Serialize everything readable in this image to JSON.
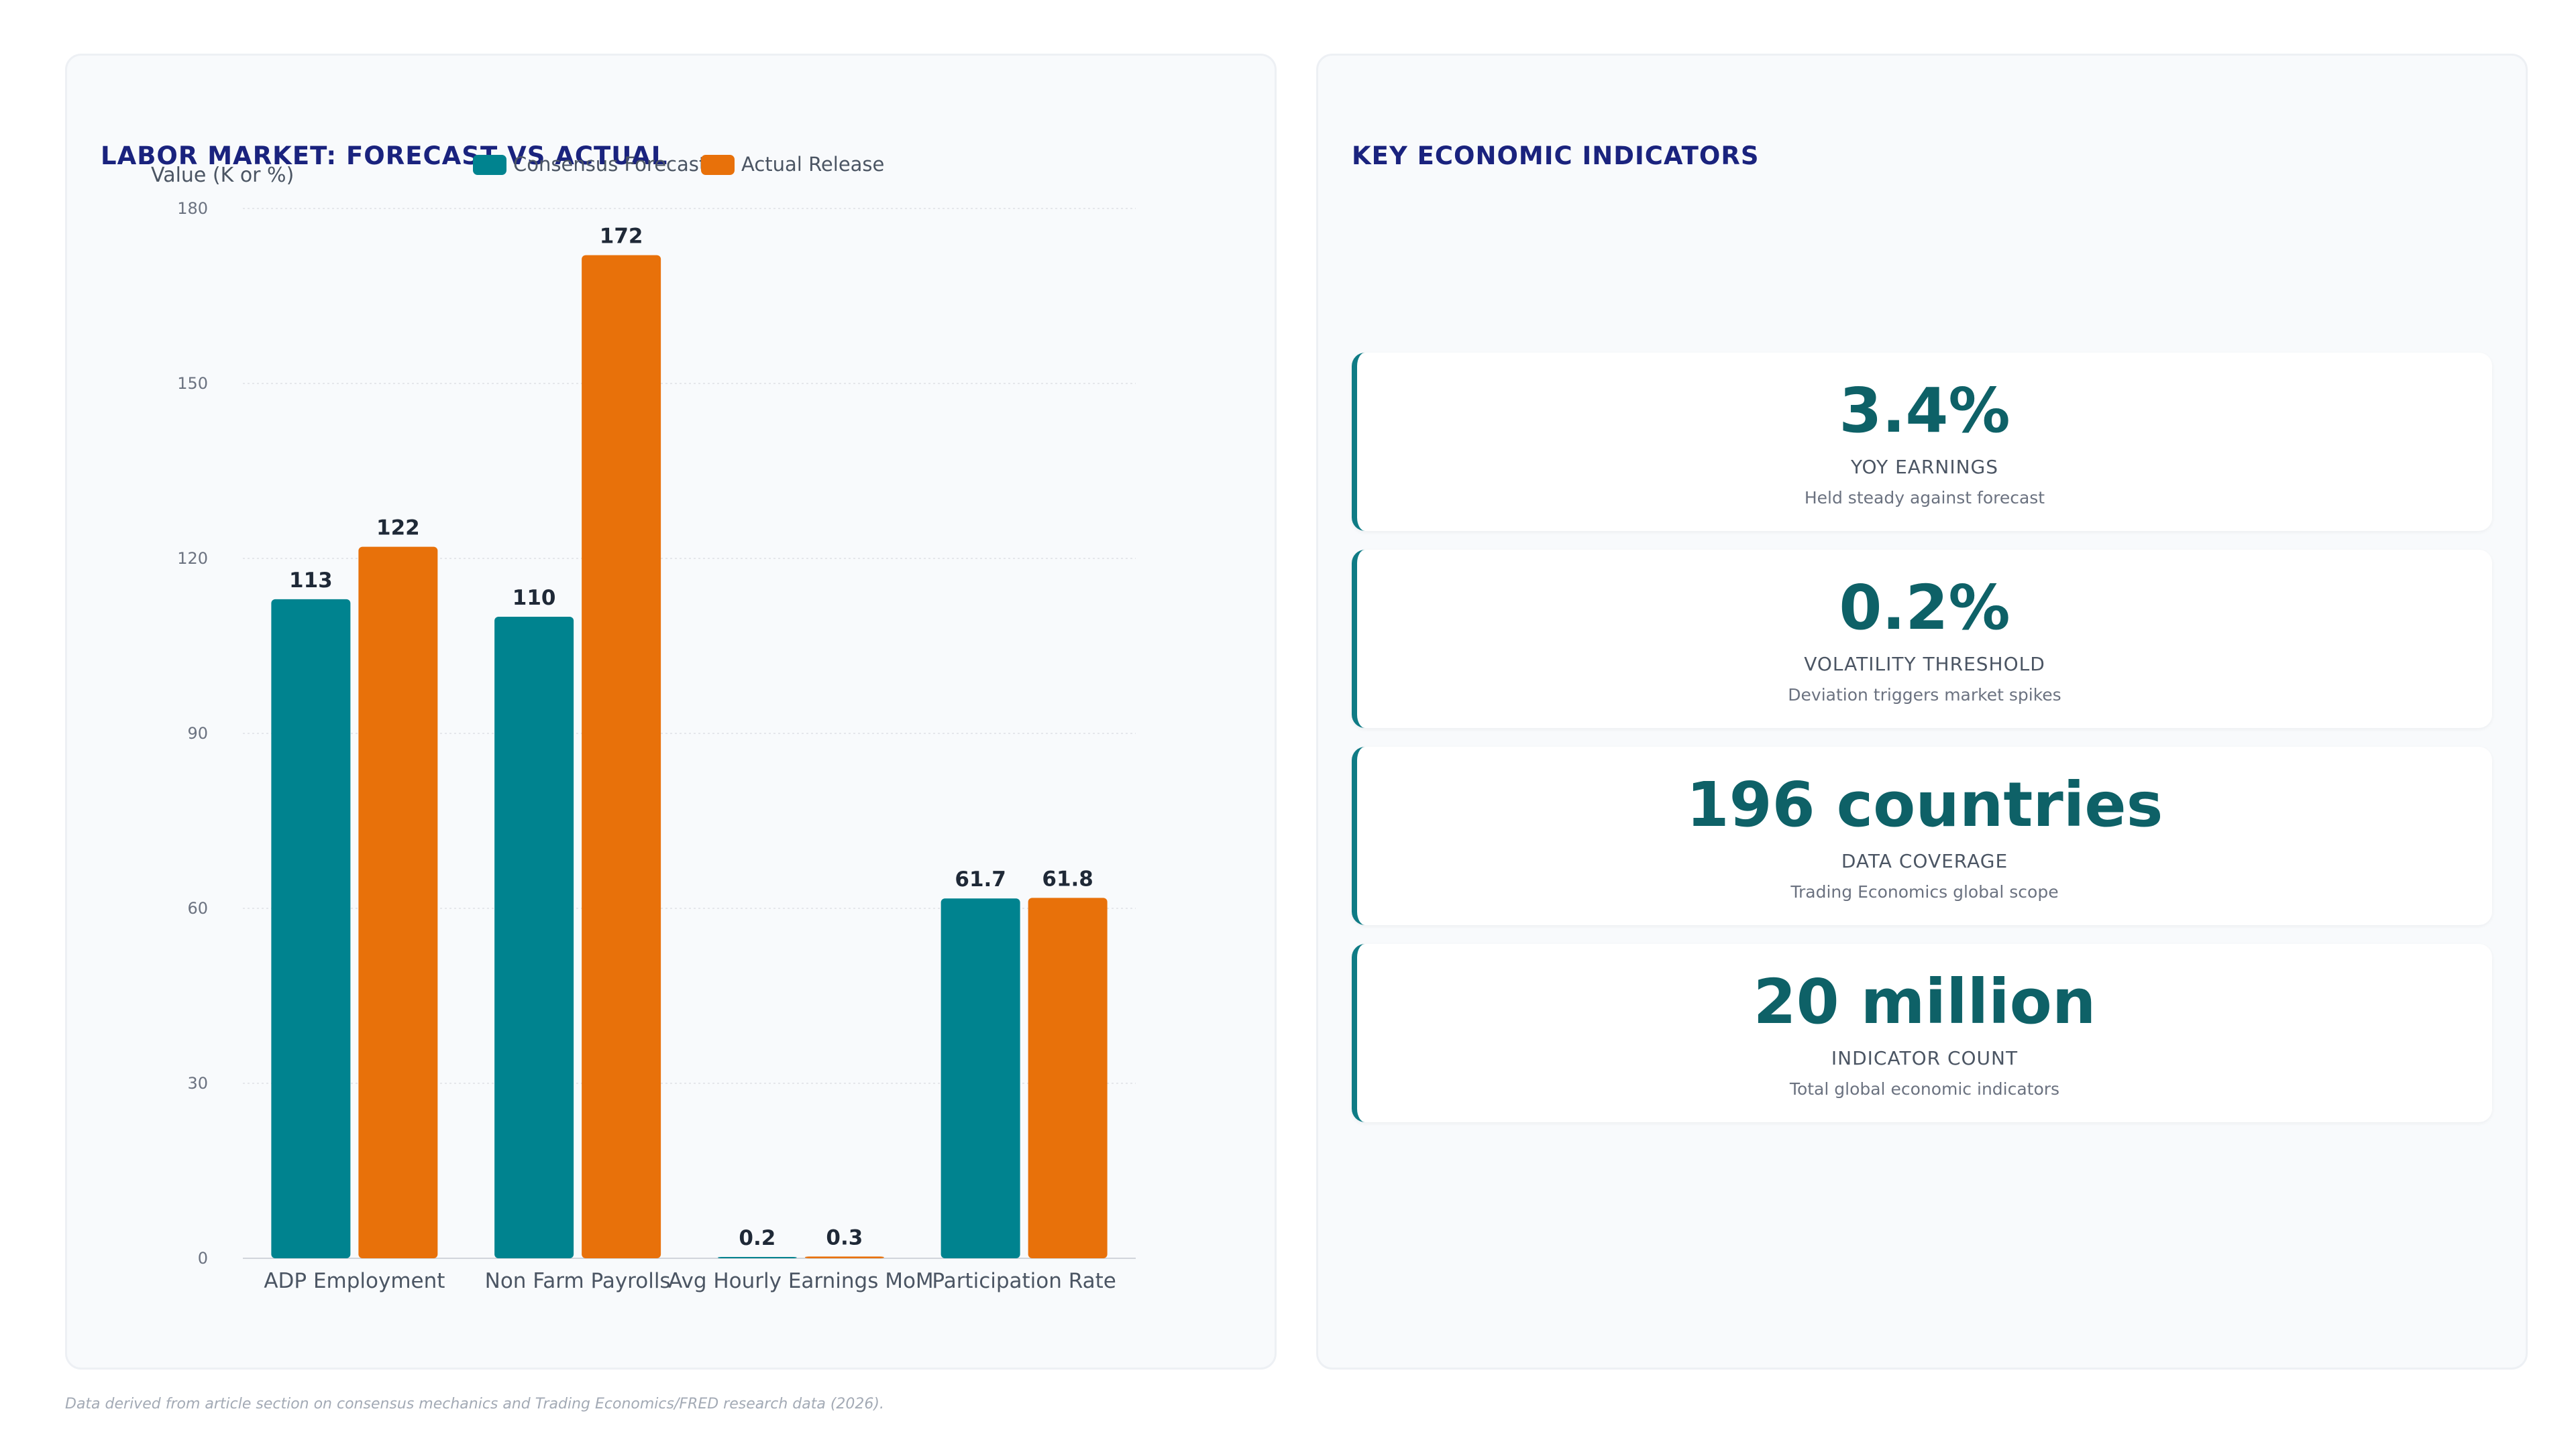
{
  "left_panel": {
    "title": "LABOR MARKET: FORECAST VS ACTUAL"
  },
  "right_panel": {
    "title": "KEY ECONOMIC INDICATORS",
    "cards": [
      {
        "value": "3.4%",
        "label": "YOY EARNINGS",
        "sub": "Held steady against forecast"
      },
      {
        "value": "0.2%",
        "label": "VOLATILITY THRESHOLD",
        "sub": "Deviation triggers market spikes"
      },
      {
        "value": "196 countries",
        "label": "DATA COVERAGE",
        "sub": "Trading Economics global scope"
      },
      {
        "value": "20 million",
        "label": "INDICATOR COUNT",
        "sub": "Total global economic indicators"
      }
    ]
  },
  "footnote": "Data derived from article section on consensus mechanics and Trading Economics/FRED research data (2026).",
  "colors": {
    "forecast": "#00838f",
    "actual": "#e8710a",
    "title": "#1a237e",
    "kpi_value": "#0e6167",
    "kpi_accent": "#0f7b85"
  },
  "chart_data": {
    "type": "bar",
    "title": "LABOR MARKET: FORECAST VS ACTUAL",
    "ylabel": "Value (K or %)",
    "xlabel": "",
    "categories": [
      "ADP Employment",
      "Non Farm Payrolls",
      "Avg Hourly Earnings MoM",
      "Participation Rate"
    ],
    "series": [
      {
        "name": "Consensus Forecast",
        "values": [
          113,
          110,
          0.2,
          61.7
        ],
        "labels": [
          "113",
          "110",
          "0.2",
          "61.7"
        ]
      },
      {
        "name": "Actual Release",
        "values": [
          122,
          172,
          0.3,
          61.8
        ],
        "labels": [
          "122",
          "172",
          "0.3",
          "61.8"
        ]
      }
    ],
    "ylim": [
      0,
      180
    ],
    "yticks": [
      0,
      30,
      60,
      90,
      120,
      150,
      180
    ],
    "grid": true,
    "legend_position": "top-center"
  }
}
